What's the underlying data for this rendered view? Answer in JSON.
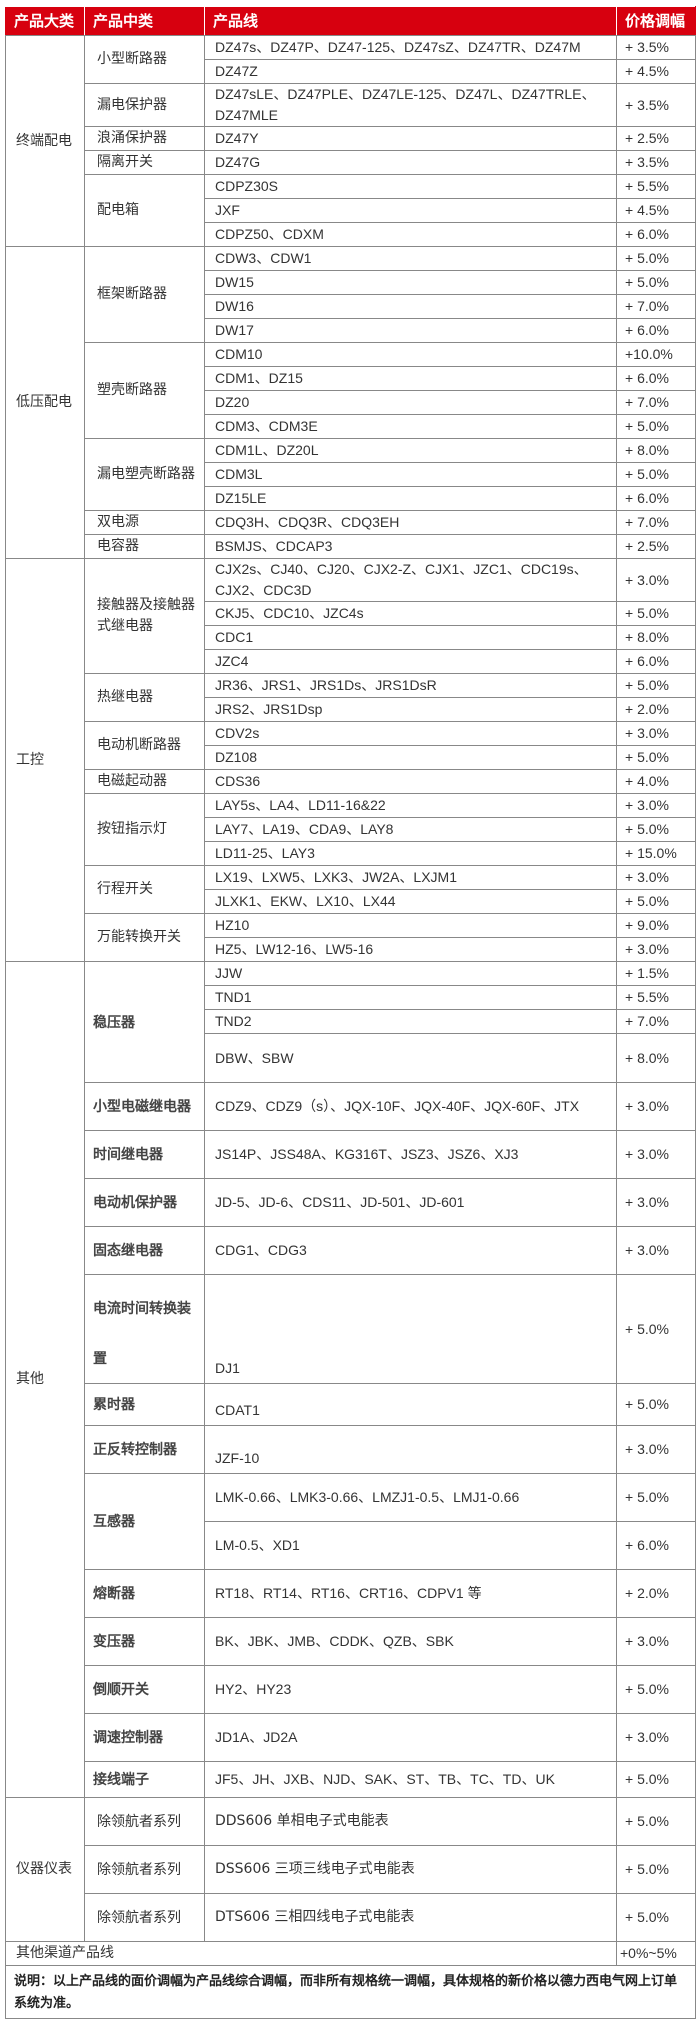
{
  "header": {
    "col1": "产品大类",
    "col2": "产品中类",
    "col3": "产品线",
    "col4": "价格调幅"
  },
  "colors": {
    "header_bg": "#d7000f",
    "header_text": "#ffffff",
    "border": "#888888"
  },
  "groups": [
    {
      "category": "终端配电",
      "subgroups": [
        {
          "name": "小型断路器",
          "items": [
            {
              "products": "DZ47s、DZ47P、DZ47-125、DZ47sZ、DZ47TR、DZ47M",
              "change": "+ 3.5%"
            },
            {
              "products": "DZ47Z",
              "change": "+ 4.5%"
            }
          ]
        },
        {
          "name": "漏电保护器",
          "items": [
            {
              "products": "DZ47sLE、DZ47PLE、DZ47LE-125、DZ47L、DZ47TRLE、DZ47MLE",
              "change": "+ 3.5%"
            }
          ]
        },
        {
          "name": "浪涌保护器",
          "items": [
            {
              "products": "DZ47Y",
              "change": "+ 2.5%"
            }
          ]
        },
        {
          "name": "隔离开关",
          "items": [
            {
              "products": "DZ47G",
              "change": "+ 3.5%"
            }
          ]
        },
        {
          "name": "配电箱",
          "items": [
            {
              "products": "CDPZ30S",
              "change": "+ 5.5%"
            },
            {
              "products": "JXF",
              "change": "+ 4.5%"
            },
            {
              "products": "CDPZ50、CDXM",
              "change": "+ 6.0%"
            }
          ]
        }
      ]
    },
    {
      "category": "低压配电",
      "subgroups": [
        {
          "name": "框架断路器",
          "items": [
            {
              "products": "CDW3、CDW1",
              "change": "+ 5.0%"
            },
            {
              "products": "DW15",
              "change": "+ 5.0%"
            },
            {
              "products": "DW16",
              "change": "+ 7.0%"
            },
            {
              "products": "DW17",
              "change": "+ 6.0%"
            }
          ]
        },
        {
          "name": "塑壳断路器",
          "items": [
            {
              "products": "CDM10",
              "change": "+10.0%"
            },
            {
              "products": "CDM1、DZ15",
              "change": "+ 6.0%"
            },
            {
              "products": "DZ20",
              "change": "+ 7.0%"
            },
            {
              "products": "CDM3、CDM3E",
              "change": "+ 5.0%"
            }
          ]
        },
        {
          "name": "漏电塑壳断路器",
          "items": [
            {
              "products": "CDM1L、DZ20L",
              "change": "+ 8.0%"
            },
            {
              "products": "CDM3L",
              "change": "+ 5.0%"
            },
            {
              "products": "DZ15LE",
              "change": "+ 6.0%"
            }
          ]
        },
        {
          "name": "双电源",
          "items": [
            {
              "products": "CDQ3H、CDQ3R、CDQ3EH",
              "change": "+ 7.0%"
            }
          ]
        },
        {
          "name": "电容器",
          "items": [
            {
              "products": "BSMJS、CDCAP3",
              "change": "+ 2.5%"
            }
          ]
        }
      ]
    },
    {
      "category": "工控",
      "subgroups": [
        {
          "name": "接触器及接触器式继电器",
          "items": [
            {
              "products": "CJX2s、CJ40、CJ20、CJX2-Z、CJX1、JZC1、CDC19s、CJX2、CDC3D",
              "change": "+ 3.0%"
            },
            {
              "products": "CKJ5、CDC10、JZC4s",
              "change": "+ 5.0%"
            },
            {
              "products": "CDC1",
              "change": "+ 8.0%"
            },
            {
              "products": "JZC4",
              "change": "+ 6.0%"
            }
          ]
        },
        {
          "name": "热继电器",
          "items": [
            {
              "products": "JR36、JRS1、JRS1Ds、JRS1DsR",
              "change": "+ 5.0%"
            },
            {
              "products": "JRS2、JRS1Dsp",
              "change": "+ 2.0%"
            }
          ]
        },
        {
          "name": "电动机断路器",
          "items": [
            {
              "products": "CDV2s",
              "change": "+ 3.0%"
            },
            {
              "products": "DZ108",
              "change": "+ 5.0%"
            }
          ]
        },
        {
          "name": "电磁起动器",
          "items": [
            {
              "products": "CDS36",
              "change": "+ 4.0%"
            }
          ]
        },
        {
          "name": "按钮指示灯",
          "items": [
            {
              "products": "LAY5s、LA4、LD11-16&22",
              "change": "+ 3.0%"
            },
            {
              "products": "LAY7、LA19、CDA9、LAY8",
              "change": "+ 5.0%"
            },
            {
              "products": "LD11-25、LAY3",
              "change": "+ 15.0%"
            }
          ]
        },
        {
          "name": "行程开关",
          "items": [
            {
              "products": "LX19、LXW5、LXK3、JW2A、LXJM1",
              "change": "+ 3.0%"
            },
            {
              "products": "JLXK1、EKW、LX10、LX44",
              "change": "+ 5.0%"
            }
          ]
        },
        {
          "name": "万能转换开关",
          "items": [
            {
              "products": "HZ10",
              "change": "+ 9.0%"
            },
            {
              "products": "HZ5、LW12-16、LW5-16",
              "change": "+ 3.0%"
            }
          ]
        }
      ]
    },
    {
      "category": "其他",
      "subgroups": [
        {
          "name": "稳压器",
          "items": [
            {
              "products": "JJW",
              "change": "+ 1.5%"
            },
            {
              "products": "TND1",
              "change": "+ 5.5%"
            },
            {
              "products": "TND2",
              "change": "+ 7.0%"
            },
            {
              "products": "DBW、SBW",
              "change": "+ 8.0%"
            }
          ]
        },
        {
          "name": "小型电磁继电器",
          "items": [
            {
              "products": "CDZ9、CDZ9（s）、JQX-10F、JQX-40F、JQX-60F、JTX",
              "change": "+ 3.0%"
            }
          ]
        },
        {
          "name": "时间继电器",
          "items": [
            {
              "products": "JS14P、JSS48A、KG316T、JSZ3、JSZ6、XJ3",
              "change": "+ 3.0%"
            }
          ]
        },
        {
          "name": "电动机保护器",
          "items": [
            {
              "products": "JD-5、JD-6、CDS11、JD-501、JD-601",
              "change": "+ 3.0%"
            }
          ]
        },
        {
          "name": "固态继电器",
          "items": [
            {
              "products": "CDG1、CDG3",
              "change": "+ 3.0%"
            }
          ]
        },
        {
          "name": "电流时间转换装置",
          "items": [
            {
              "products": "DJ1",
              "change": "+ 5.0%"
            }
          ]
        },
        {
          "name": "累时器",
          "items": [
            {
              "products": "CDAT1",
              "change": "+ 5.0%"
            }
          ]
        },
        {
          "name": "正反转控制器",
          "items": [
            {
              "products": "JZF-10",
              "change": "+ 3.0%"
            }
          ]
        },
        {
          "name": "互感器",
          "items": [
            {
              "products": "LMK-0.66、LMK3-0.66、LMZJ1-0.5、LMJ1-0.66",
              "change": "+ 5.0%"
            },
            {
              "products": "LM-0.5、XD1",
              "change": "+ 6.0%"
            }
          ]
        },
        {
          "name": "熔断器",
          "items": [
            {
              "products": "RT18、RT14、RT16、CRT16、CDPV1 等",
              "change": "+ 2.0%"
            }
          ]
        },
        {
          "name": "变压器",
          "items": [
            {
              "products": "BK、JBK、JMB、CDDK、QZB、SBK",
              "change": "+ 3.0%"
            }
          ]
        },
        {
          "name": "倒顺开关",
          "items": [
            {
              "products": "HY2、HY23",
              "change": "+ 5.0%"
            }
          ]
        },
        {
          "name": "调速控制器",
          "items": [
            {
              "products": "JD1A、JD2A",
              "change": "+ 3.0%"
            }
          ]
        },
        {
          "name": "接线端子",
          "items": [
            {
              "products": "JF5、JH、JXB、NJD、SAK、ST、TB、TC、TD、UK",
              "change": "+ 5.0%"
            }
          ]
        }
      ]
    },
    {
      "category": "仪器仪表",
      "subgroups": [
        {
          "name": "除领航者系列",
          "items": [
            {
              "products": "DDS606 单相电子式电能表",
              "change": "+ 5.0%"
            }
          ]
        },
        {
          "name": "除领航者系列",
          "items": [
            {
              "products": "DSS606 三项三线电子式电能表",
              "change": "+ 5.0%"
            }
          ]
        },
        {
          "name": "除领航者系列",
          "items": [
            {
              "products": "DTS606 三相四线电子式电能表",
              "change": "+ 5.0%"
            }
          ]
        }
      ]
    }
  ],
  "other_channels": {
    "label": "其他渠道产品线",
    "change": "+0%~5%"
  },
  "note": "说明：以上产品线的面价调幅为产品线综合调幅，而非所有规格统一调幅，具体规格的新价格以德力西电气网上订单系统为准。"
}
